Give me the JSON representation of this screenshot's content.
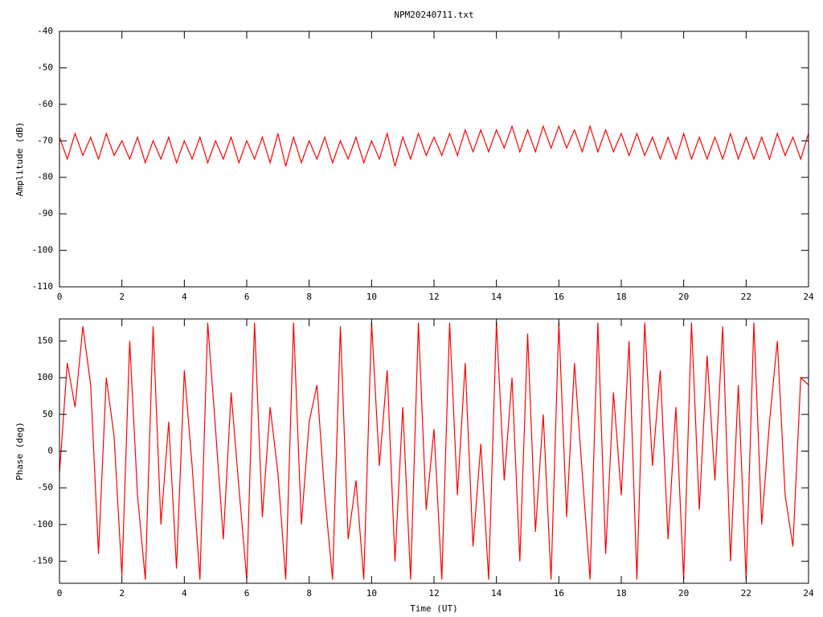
{
  "chart_data": [
    {
      "type": "line",
      "title": "NPM20240711.txt",
      "ylabel": "Amplitude (dB)",
      "color": "#ff0000",
      "xlim": [
        0,
        24
      ],
      "ylim": [
        -110,
        -40
      ],
      "xticks": [
        0,
        2,
        4,
        6,
        8,
        10,
        12,
        14,
        16,
        18,
        20,
        22,
        24
      ],
      "yticks": [
        -110,
        -100,
        -90,
        -80,
        -70,
        -60,
        -50,
        -40
      ],
      "x": [
        0,
        0.25,
        0.5,
        0.75,
        1,
        1.25,
        1.5,
        1.75,
        2,
        2.25,
        2.5,
        2.75,
        3,
        3.25,
        3.5,
        3.75,
        4,
        4.25,
        4.5,
        4.75,
        5,
        5.25,
        5.5,
        5.75,
        6,
        6.25,
        6.5,
        6.75,
        7,
        7.25,
        7.5,
        7.75,
        8,
        8.25,
        8.5,
        8.75,
        9,
        9.25,
        9.5,
        9.75,
        10,
        10.25,
        10.5,
        10.75,
        11,
        11.25,
        11.5,
        11.75,
        12,
        12.25,
        12.5,
        12.75,
        13,
        13.25,
        13.5,
        13.75,
        14,
        14.25,
        14.5,
        14.75,
        15,
        15.25,
        15.5,
        15.75,
        16,
        16.25,
        16.5,
        16.75,
        17,
        17.25,
        17.5,
        17.75,
        18,
        18.25,
        18.5,
        18.75,
        19,
        19.25,
        19.5,
        19.75,
        20,
        20.25,
        20.5,
        20.75,
        21,
        21.25,
        21.5,
        21.75,
        22,
        22.25,
        22.5,
        22.75,
        23,
        23.25,
        23.5,
        23.75,
        24
      ],
      "values": [
        -69,
        -75,
        -68,
        -74,
        -69,
        -75,
        -68,
        -74,
        -70,
        -75,
        -69,
        -76,
        -70,
        -75,
        -69,
        -76,
        -70,
        -75,
        -69,
        -76,
        -70,
        -75,
        -69,
        -76,
        -70,
        -75,
        -69,
        -76,
        -68,
        -77,
        -69,
        -76,
        -70,
        -75,
        -69,
        -76,
        -70,
        -75,
        -69,
        -76,
        -70,
        -75,
        -68,
        -77,
        -69,
        -75,
        -68,
        -74,
        -69,
        -74,
        -68,
        -74,
        -67,
        -73,
        -67,
        -73,
        -67,
        -72,
        -66,
        -73,
        -67,
        -73,
        -66,
        -72,
        -66,
        -72,
        -67,
        -73,
        -66,
        -73,
        -67,
        -73,
        -68,
        -74,
        -68,
        -74,
        -69,
        -75,
        -69,
        -75,
        -68,
        -75,
        -69,
        -75,
        -69,
        -75,
        -68,
        -75,
        -69,
        -75,
        -69,
        -75,
        -68,
        -74,
        -69,
        -75,
        -68
      ]
    },
    {
      "type": "line",
      "ylabel": "Phase (deg)",
      "xlabel": "Time (UT)",
      "color": "#ff0000",
      "xlim": [
        0,
        24
      ],
      "ylim": [
        -180,
        180
      ],
      "xticks": [
        0,
        2,
        4,
        6,
        8,
        10,
        12,
        14,
        16,
        18,
        20,
        22,
        24
      ],
      "yticks": [
        -150,
        -100,
        -50,
        0,
        50,
        100,
        150
      ],
      "x": [
        0,
        0.25,
        0.5,
        0.75,
        1,
        1.25,
        1.5,
        1.75,
        2,
        2.25,
        2.5,
        2.75,
        3,
        3.25,
        3.5,
        3.75,
        4,
        4.25,
        4.5,
        4.75,
        5,
        5.25,
        5.5,
        5.75,
        6,
        6.25,
        6.5,
        6.75,
        7,
        7.25,
        7.5,
        7.75,
        8,
        8.25,
        8.5,
        8.75,
        9,
        9.25,
        9.5,
        9.75,
        10,
        10.25,
        10.5,
        10.75,
        11,
        11.25,
        11.5,
        11.75,
        12,
        12.25,
        12.5,
        12.75,
        13,
        13.25,
        13.5,
        13.75,
        14,
        14.25,
        14.5,
        14.75,
        15,
        15.25,
        15.5,
        15.75,
        16,
        16.25,
        16.5,
        16.75,
        17,
        17.25,
        17.5,
        17.75,
        18,
        18.25,
        18.5,
        18.75,
        19,
        19.25,
        19.5,
        19.75,
        20,
        20.25,
        20.5,
        20.75,
        21,
        21.25,
        21.5,
        21.75,
        22,
        22.25,
        22.5,
        22.75,
        23,
        23.25,
        23.5,
        23.75,
        24
      ],
      "values": [
        -30,
        120,
        60,
        170,
        90,
        -140,
        100,
        20,
        -170,
        150,
        -60,
        -175,
        170,
        -100,
        40,
        -160,
        110,
        -20,
        -175,
        175,
        30,
        -120,
        80,
        -50,
        -175,
        175,
        -90,
        60,
        -30,
        -175,
        175,
        -100,
        40,
        90,
        -60,
        -175,
        170,
        -120,
        -40,
        -175,
        175,
        -20,
        110,
        -150,
        60,
        -175,
        175,
        -80,
        30,
        -175,
        175,
        -60,
        120,
        -130,
        10,
        -175,
        175,
        -40,
        100,
        -150,
        160,
        -110,
        50,
        -175,
        175,
        -90,
        120,
        -30,
        -175,
        175,
        -140,
        80,
        -60,
        150,
        -175,
        175,
        -20,
        110,
        -120,
        60,
        -175,
        175,
        -80,
        130,
        -40,
        170,
        -150,
        90,
        -175,
        175,
        -100,
        40,
        150,
        -60,
        -130,
        100,
        90
      ]
    }
  ]
}
